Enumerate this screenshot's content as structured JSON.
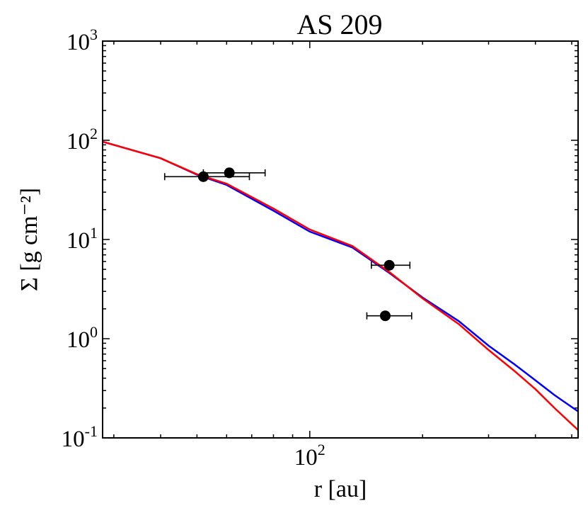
{
  "chart_data": {
    "type": "scatter",
    "title": "AS 209",
    "xlabel": "r [au]",
    "ylabel": "Σ [g cm⁻²]",
    "x_scale": "log",
    "y_scale": "log",
    "xlim": [
      28,
      520
    ],
    "ylim": [
      0.1,
      1000
    ],
    "x_ticks": [
      {
        "value": 100,
        "base": "10",
        "exp": "2"
      }
    ],
    "y_ticks": [
      {
        "value": 0.1,
        "base": "10",
        "exp": "-1"
      },
      {
        "value": 1,
        "base": "10",
        "exp": "0"
      },
      {
        "value": 10,
        "base": "10",
        "exp": "1"
      },
      {
        "value": 100,
        "base": "10",
        "exp": "2"
      },
      {
        "value": 1000,
        "base": "10",
        "exp": "3"
      }
    ],
    "grid": false,
    "points": [
      {
        "x": 52,
        "y": 43,
        "xerr": [
          41,
          69
        ]
      },
      {
        "x": 61,
        "y": 47,
        "xerr": [
          52,
          76
        ]
      },
      {
        "x": 163,
        "y": 5.5,
        "xerr": [
          146,
          185
        ]
      },
      {
        "x": 159,
        "y": 1.7,
        "xerr": [
          142,
          187
        ]
      }
    ],
    "series": [
      {
        "color": "#0000ff",
        "x": [
          28,
          40,
          50,
          60,
          80,
          100,
          130,
          163,
          200,
          250,
          300,
          350,
          400,
          450,
          520
        ],
        "y": [
          97,
          66,
          45,
          35.5,
          19.5,
          12,
          8.3,
          4.6,
          2.6,
          1.5,
          0.85,
          0.56,
          0.38,
          0.27,
          0.185
        ]
      },
      {
        "color": "#ff0000",
        "x": [
          28,
          40,
          50,
          60,
          80,
          100,
          130,
          163,
          200,
          250,
          300,
          350,
          400,
          450,
          520
        ],
        "y": [
          97,
          66,
          45.5,
          36.5,
          20.5,
          12.6,
          8.6,
          4.7,
          2.55,
          1.4,
          0.77,
          0.48,
          0.31,
          0.2,
          0.12
        ]
      }
    ]
  }
}
